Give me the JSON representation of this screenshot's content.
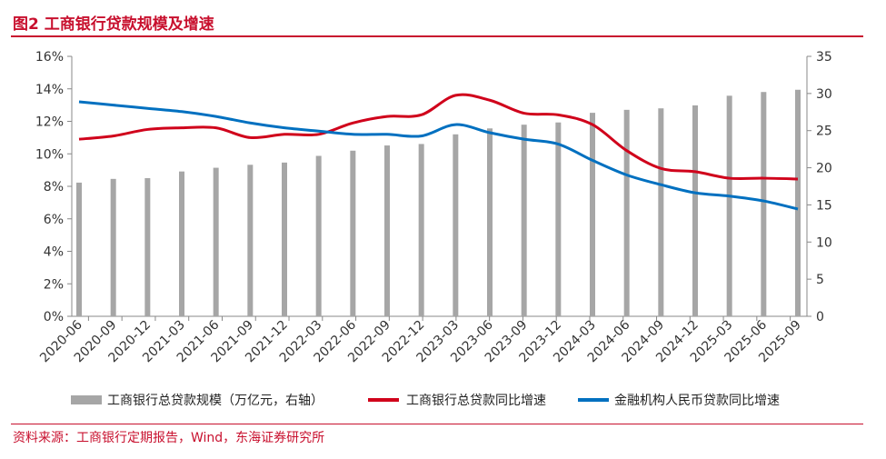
{
  "title": "图2  工商银行贷款规模及增速",
  "source": "资料来源：工商银行定期报告，Wind，东海证券研究所",
  "chart_data": {
    "type": "bar+line",
    "categories": [
      "2020-06",
      "2020-09",
      "2020-12",
      "2021-03",
      "2021-06",
      "2021-09",
      "2021-12",
      "2022-03",
      "2022-06",
      "2022-09",
      "2022-12",
      "2023-03",
      "2023-06",
      "2023-09",
      "2023-12",
      "2024-03",
      "2024-06",
      "2024-09",
      "2024-12",
      "2025-03",
      "2025-06",
      "2025-09"
    ],
    "left_axis": {
      "min": 0,
      "max": 16,
      "step": 2,
      "format": "percent",
      "ticks": [
        "0%",
        "2%",
        "4%",
        "6%",
        "8%",
        "10%",
        "12%",
        "14%",
        "16%"
      ]
    },
    "right_axis": {
      "min": 0,
      "max": 35,
      "step": 5,
      "ticks": [
        "0",
        "5",
        "10",
        "15",
        "20",
        "25",
        "30",
        "35"
      ]
    },
    "series": [
      {
        "name": "工商银行总贷款规模（万亿元，右轴）",
        "type": "bar",
        "axis": "right",
        "color": "#a6a6a6",
        "values": [
          18.0,
          18.5,
          18.6,
          19.5,
          20.0,
          20.4,
          20.7,
          21.6,
          22.3,
          23.0,
          23.2,
          24.5,
          25.3,
          25.8,
          26.1,
          27.4,
          27.8,
          28.0,
          28.4,
          29.7,
          30.2,
          30.5
        ]
      },
      {
        "name": "工商银行总贷款同比增速",
        "type": "line",
        "axis": "left",
        "color": "#d0021b",
        "values": [
          10.9,
          11.1,
          11.5,
          11.6,
          11.6,
          11.0,
          11.2,
          11.2,
          11.9,
          12.3,
          12.4,
          13.6,
          13.3,
          12.5,
          12.4,
          11.8,
          10.2,
          9.1,
          8.9,
          8.5,
          8.5,
          8.45
        ]
      },
      {
        "name": "金融机构人民币贷款同比增速",
        "type": "line",
        "axis": "left",
        "color": "#0070c0",
        "values": [
          13.2,
          13.0,
          12.8,
          12.6,
          12.3,
          11.9,
          11.6,
          11.4,
          11.2,
          11.2,
          11.1,
          11.8,
          11.3,
          10.9,
          10.6,
          9.6,
          8.7,
          8.1,
          7.6,
          7.4,
          7.1,
          6.6
        ]
      }
    ],
    "legend_position": "bottom",
    "grid": false
  }
}
